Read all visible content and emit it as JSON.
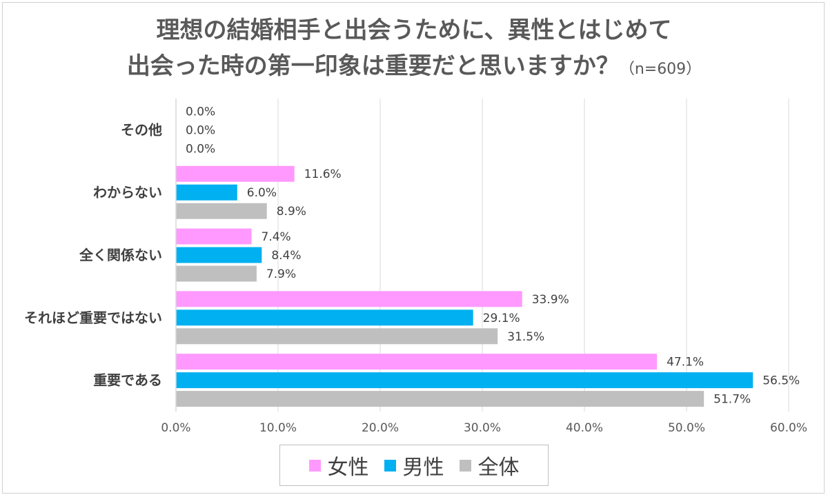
{
  "title": {
    "line1": "理想の結婚相手と出会うために、異性とはじめて",
    "line2": "出会った時の第一印象は重要だと思いますか？",
    "note": "（n=609）"
  },
  "chart_data": {
    "type": "bar",
    "orientation": "horizontal",
    "categories": [
      "その他",
      "わからない",
      "全く関係ない",
      "それほど重要ではない",
      "重要である"
    ],
    "series": [
      {
        "name": "女性",
        "color": "#ff99ff",
        "values": [
          0.0,
          11.6,
          7.4,
          33.9,
          47.1
        ]
      },
      {
        "name": "男性",
        "color": "#00b0f0",
        "values": [
          0.0,
          6.0,
          8.4,
          29.1,
          56.5
        ]
      },
      {
        "name": "全体",
        "color": "#bfbfbf",
        "values": [
          0.0,
          8.9,
          7.9,
          31.5,
          51.7
        ]
      }
    ],
    "xlim": [
      0,
      60
    ],
    "x_ticks": [
      "0.0%",
      "10.0%",
      "20.0%",
      "30.0%",
      "40.0%",
      "50.0%",
      "60.0%"
    ],
    "value_format": "percent_1dp",
    "grid": true,
    "legend_position": "bottom"
  }
}
